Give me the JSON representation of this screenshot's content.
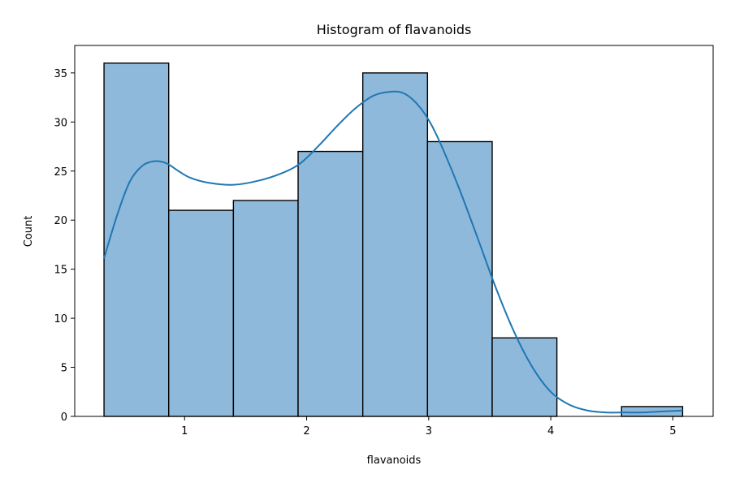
{
  "chart_data": {
    "type": "bar",
    "title": "Histogram of flavanoids",
    "xlabel": "flavanoids",
    "ylabel": "Count",
    "xlim": [
      0.1,
      5.33
    ],
    "ylim": [
      0,
      37.8
    ],
    "xticks": [
      1,
      2,
      3,
      4,
      5
    ],
    "yticks": [
      0,
      5,
      10,
      15,
      20,
      25,
      30,
      35
    ],
    "grid": false,
    "bin_edges": [
      0.34,
      0.87,
      1.4,
      1.93,
      2.46,
      2.99,
      3.52,
      4.05,
      4.58,
      5.08
    ],
    "counts": [
      36,
      21,
      22,
      27,
      35,
      28,
      8,
      0,
      1
    ],
    "kde": {
      "x": [
        0.34,
        0.45,
        0.55,
        0.65,
        0.75,
        0.85,
        0.95,
        1.05,
        1.2,
        1.4,
        1.6,
        1.8,
        1.95,
        2.1,
        2.25,
        2.4,
        2.55,
        2.7,
        2.8,
        2.9,
        3.0,
        3.1,
        3.25,
        3.4,
        3.55,
        3.7,
        3.85,
        4.0,
        4.15,
        4.3,
        4.45,
        4.6,
        4.75,
        4.9,
        5.08
      ],
      "y": [
        16.1,
        20.6,
        23.9,
        25.5,
        26.0,
        25.8,
        25.0,
        24.3,
        23.8,
        23.6,
        24.0,
        24.8,
        25.8,
        27.6,
        29.6,
        31.4,
        32.7,
        33.1,
        32.9,
        31.9,
        30.2,
        27.7,
        23.2,
        18.2,
        13.1,
        8.6,
        5.0,
        2.5,
        1.2,
        0.6,
        0.4,
        0.4,
        0.4,
        0.5,
        0.6
      ]
    },
    "colors": {
      "bar_fill": "#8fb9da",
      "bar_edge": "#000000",
      "kde_line": "#1f77b4"
    }
  }
}
